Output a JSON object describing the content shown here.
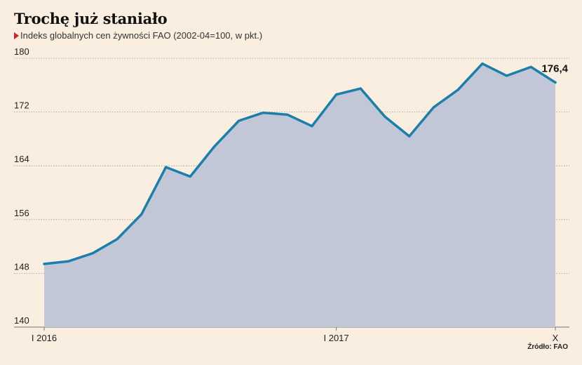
{
  "title": "Trochę już staniało",
  "subtitle": "Indeks globalnych cen żywności FAO (2002-04=100, w pkt.)",
  "source": "Źródło: FAO",
  "chart_data": {
    "type": "area",
    "y_ticks": [
      "140",
      "148",
      "156",
      "164",
      "172",
      "180"
    ],
    "ylim": [
      140,
      180
    ],
    "x_labels": [
      {
        "index": 0,
        "text": "I 2016"
      },
      {
        "index": 12,
        "text": "I 2017"
      },
      {
        "index": 21,
        "text": "X"
      }
    ],
    "values": [
      149.4,
      149.8,
      151.0,
      153.1,
      156.8,
      163.8,
      162.4,
      166.9,
      170.7,
      171.9,
      171.6,
      169.9,
      174.6,
      175.5,
      171.3,
      168.4,
      172.7,
      175.3,
      179.2,
      177.4,
      178.7,
      176.4
    ],
    "end_label": "176,4",
    "grid": true,
    "line_color": "#1a7fab",
    "fill_color": "#c2c7d7"
  }
}
